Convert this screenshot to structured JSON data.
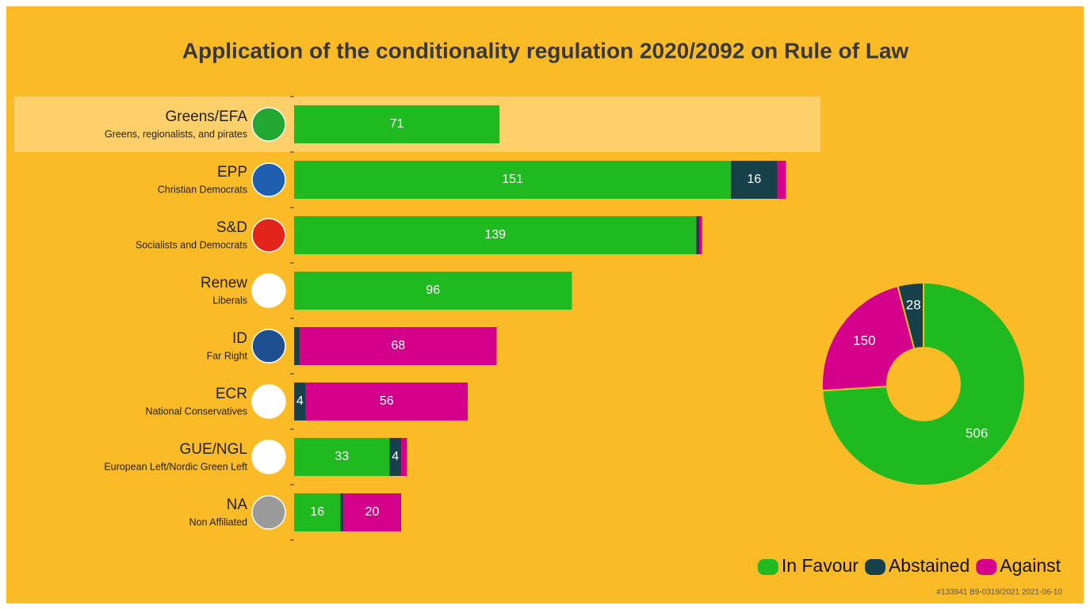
{
  "chart_data": [
    {
      "type": "stacked-barh",
      "title": "Application of the conditionality regulation 2020/2092 on Rule of Law",
      "categories": [
        "Greens/EFA",
        "EPP",
        "S&D",
        "Renew",
        "ID",
        "ECR",
        "GUE/NGL",
        "NA"
      ],
      "category_descriptions": [
        "Greens, regionalists, and pirates",
        "Christian Democrats",
        "Socialists and Democrats",
        "Liberals",
        "Far Right",
        "National Conservatives",
        "European Left/Nordic Green Left",
        "Non Affiliated"
      ],
      "logo_colors": [
        "#22a832",
        "#1f5fb0",
        "#e3241b",
        "#ffffff",
        "#1d4f91",
        "#ffffff",
        "#ffffff",
        "#9a9a9a"
      ],
      "highlight_index": 0,
      "xlim": [
        0,
        170
      ],
      "series": [
        {
          "name": "In Favour",
          "color": "#1fba1f",
          "values": [
            71,
            151,
            139,
            96,
            0,
            0,
            33,
            16
          ],
          "value_labels": [
            "71",
            "151",
            "139",
            "96",
            "0",
            null,
            "33",
            "16"
          ]
        },
        {
          "name": "Abstained",
          "color": "#16414a",
          "values": [
            0,
            16,
            1,
            0,
            2,
            4,
            4,
            1
          ],
          "value_labels": [
            null,
            "16",
            null,
            null,
            null,
            "4",
            "4",
            null
          ]
        },
        {
          "name": "Against",
          "color": "#d4008b",
          "values": [
            0,
            3,
            1,
            0,
            68,
            56,
            2,
            20
          ],
          "value_labels": [
            null,
            null,
            null,
            null,
            "68",
            "56",
            null,
            "20"
          ]
        }
      ],
      "legend": "lower right",
      "footnote": "#133941 B9-0319/2021 2021-06-10"
    },
    {
      "type": "donut",
      "categories": [
        "In Favour",
        "Against",
        "Abstained"
      ],
      "values": [
        506,
        150,
        28
      ],
      "colors": [
        "#1fba1f",
        "#d4008b",
        "#16414a"
      ]
    }
  ]
}
